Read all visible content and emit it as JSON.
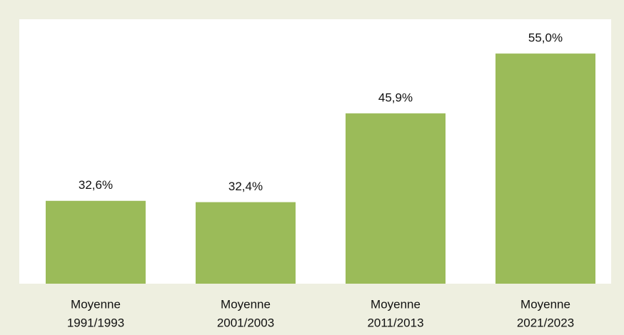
{
  "chart_data": {
    "type": "bar",
    "categories": [
      [
        "Moyenne",
        "1991/1993"
      ],
      [
        "Moyenne",
        "2001/2003"
      ],
      [
        "Moyenne",
        "2011/2013"
      ],
      [
        "Moyenne",
        "2021/2023"
      ]
    ],
    "values": [
      32.6,
      32.4,
      45.9,
      55.0
    ],
    "value_labels": [
      "32,6%",
      "32,4%",
      "45,9%",
      "55,0%"
    ],
    "color": "#9bbb59",
    "ylim": [
      20,
      60
    ],
    "grid": false
  }
}
